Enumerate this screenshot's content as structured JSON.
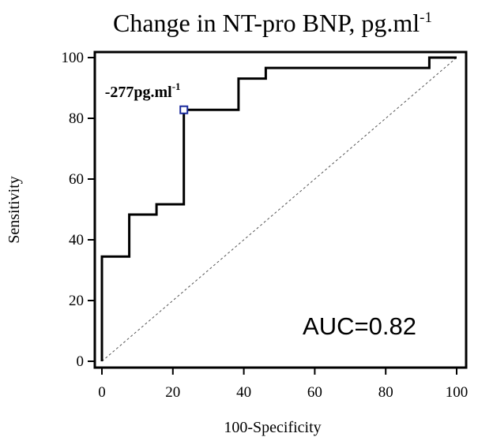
{
  "chart_data": {
    "type": "line",
    "title": "Change in NT-pro BNP, pg.ml",
    "title_superscript": "-1",
    "xlabel": "100-Specificity",
    "ylabel": "Sensitivity",
    "xlim": [
      0,
      100
    ],
    "ylim": [
      0,
      100
    ],
    "xticks": [
      0,
      20,
      40,
      60,
      80,
      100
    ],
    "yticks": [
      0,
      20,
      40,
      60,
      80,
      100
    ],
    "grid": false,
    "roc_curve": {
      "x": [
        0,
        0,
        7.7,
        7.7,
        15.4,
        15.4,
        23.1,
        23.1,
        38.5,
        38.5,
        46.2,
        46.2,
        92.3,
        92.3,
        100
      ],
      "y": [
        0,
        34.5,
        34.5,
        48.3,
        48.3,
        51.7,
        51.7,
        82.8,
        82.8,
        93.1,
        93.1,
        96.6,
        96.6,
        100,
        100
      ]
    },
    "reference_line": {
      "x": [
        0,
        100
      ],
      "y": [
        0,
        100
      ],
      "style": "dashed"
    },
    "cutoff_point": {
      "x": 23.1,
      "y": 82.8,
      "label": "-277pg.ml",
      "label_superscript": "-1"
    },
    "annotation": "AUC=0.82",
    "colors": {
      "curve": "#000000",
      "reference": "#555555",
      "marker": "#1a2a9c"
    }
  }
}
